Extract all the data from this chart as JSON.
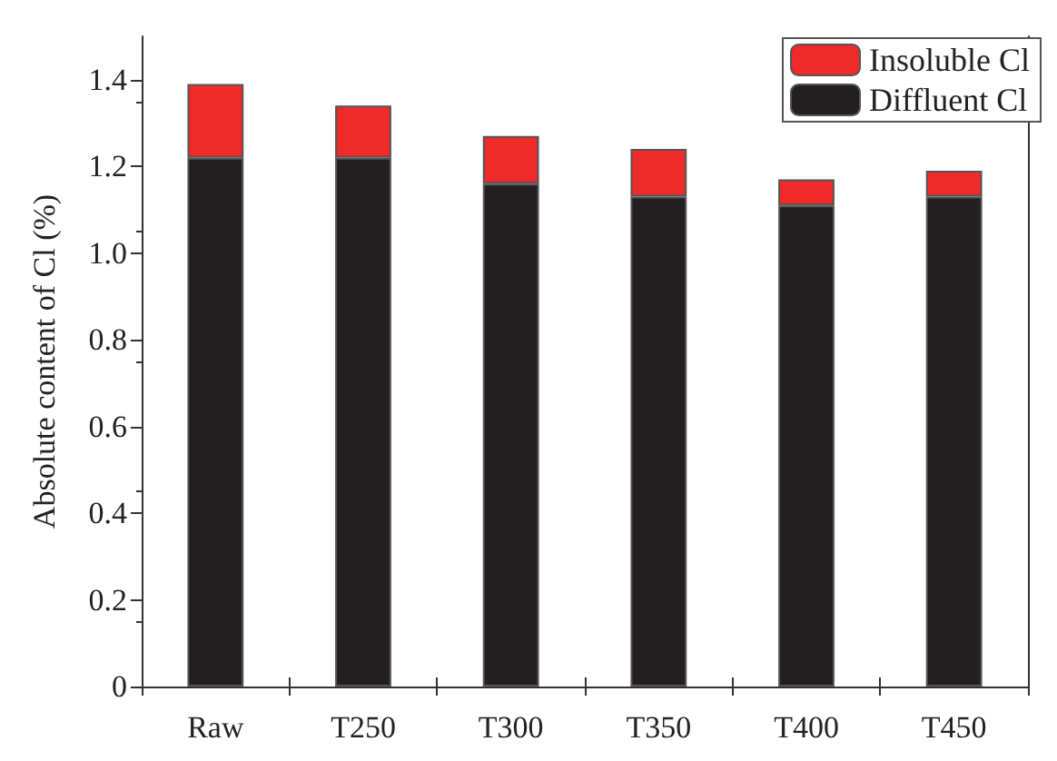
{
  "chart_data": {
    "type": "bar",
    "ylabel": "Absolute content of Cl (%)",
    "categories": [
      "Raw",
      "T250",
      "T300",
      "T350",
      "T400",
      "T450"
    ],
    "stacked": true,
    "legend": "top right",
    "grid": false,
    "ylim": [
      0,
      1.5
    ],
    "yticks": [
      0,
      {
        "value": 0.2,
        "label": "0.2"
      },
      {
        "value": 0.4,
        "label": "0.4"
      },
      {
        "value": 0.6,
        "label": "0.6"
      },
      {
        "value": 0.8,
        "label": "0.8"
      },
      {
        "value": 1,
        "label": "1.0"
      },
      {
        "value": 1.2,
        "label": "1.2"
      },
      {
        "value": 1.4,
        "label": "1.4"
      }
    ],
    "series": [
      {
        "name": "Diffluent Cl",
        "color": "#231f20",
        "values": [
          1.22,
          1.22,
          1.16,
          1.13,
          1.11,
          1.13
        ]
      },
      {
        "name": "Insoluble Cl",
        "color": "#ee2a2a",
        "values": [
          0.17,
          0.12,
          0.11,
          0.11,
          0.06,
          0.06
        ]
      }
    ]
  }
}
